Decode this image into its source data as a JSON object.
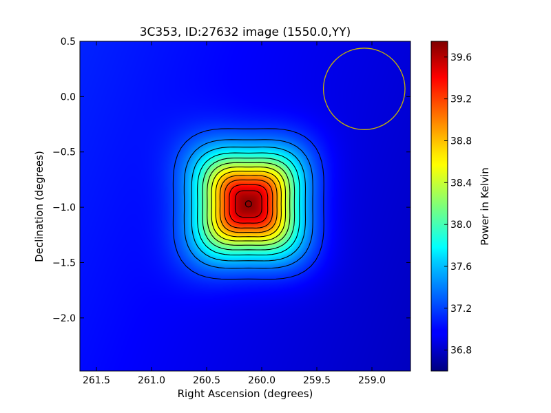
{
  "chart_data": {
    "type": "heatmap",
    "title": "3C353, ID:27632 image (1550.0,YY)",
    "xlabel": "Right Ascension (degrees)",
    "ylabel": "Declination (degrees)",
    "xlim": [
      261.65,
      258.65
    ],
    "ylim": [
      -2.48,
      0.5
    ],
    "x_ticks": [
      {
        "value": 261.5,
        "label": "261.5"
      },
      {
        "value": 261.0,
        "label": "261.0"
      },
      {
        "value": 260.5,
        "label": "260.5"
      },
      {
        "value": 260.0,
        "label": "260.0"
      },
      {
        "value": 259.5,
        "label": "259.5"
      },
      {
        "value": 259.0,
        "label": "259.0"
      }
    ],
    "y_ticks": [
      {
        "value": 0.5,
        "label": "0.5"
      },
      {
        "value": 0.0,
        "label": "0.0"
      },
      {
        "value": -0.5,
        "label": "−0.5"
      },
      {
        "value": -1.0,
        "label": "−1.0"
      },
      {
        "value": -1.5,
        "label": "−1.5"
      },
      {
        "value": -2.0,
        "label": "−2.0"
      }
    ],
    "colorbar": {
      "label": "Power in Kelvin",
      "colormap": "jet",
      "range": [
        36.6,
        39.75
      ],
      "ticks": [
        {
          "value": 36.8,
          "label": "36.8"
        },
        {
          "value": 37.2,
          "label": "37.2"
        },
        {
          "value": 37.6,
          "label": "37.6"
        },
        {
          "value": 38.0,
          "label": "38.0"
        },
        {
          "value": 38.4,
          "label": "38.4"
        },
        {
          "value": 38.8,
          "label": "38.8"
        },
        {
          "value": 39.2,
          "label": "39.2"
        },
        {
          "value": 39.6,
          "label": "39.6"
        }
      ]
    },
    "source": {
      "ra": 260.12,
      "dec": -0.97,
      "peak": 39.75
    },
    "background": 36.95,
    "contour_count": 12,
    "beam_circle": {
      "ra": 259.07,
      "dec": 0.07,
      "radius_deg": 0.37,
      "color": "#c8b400"
    },
    "marker": {
      "ra": 260.12,
      "dec": -0.97
    }
  }
}
